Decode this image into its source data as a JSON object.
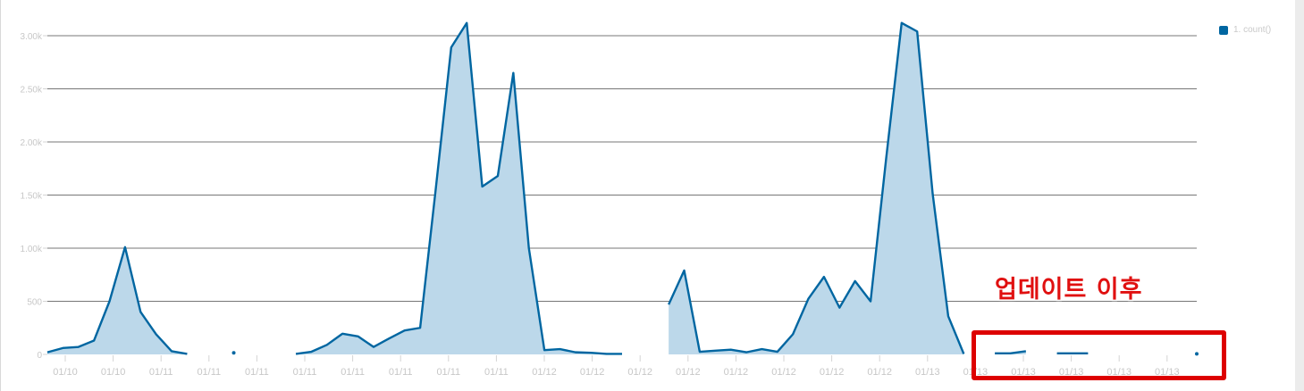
{
  "colors": {
    "series": "#0066a1",
    "fill": "#bcd8ea",
    "grid": "#4a4a4a",
    "ticks": "#c7c7c7",
    "annotation": "#e01010"
  },
  "legend": {
    "label": "1. count()",
    "placement": "top-right"
  },
  "annotation": {
    "text": "업데이트 이후"
  },
  "chart_data": {
    "type": "area",
    "title": "",
    "xlabel": "",
    "ylabel": "",
    "ylim": [
      0,
      3000
    ],
    "yticks": [
      0,
      500,
      1000,
      1500,
      2000,
      2500,
      3000
    ],
    "ytick_labels": [
      "0",
      "500",
      "1.00k",
      "1.50k",
      "2.00k",
      "2.50k",
      "3.00k"
    ],
    "xtick_labels": [
      "01/10",
      "01/10",
      "01/11",
      "01/11",
      "01/11",
      "01/11",
      "01/11",
      "01/11",
      "01/11",
      "01/11",
      "01/12",
      "01/12",
      "01/12",
      "01/12",
      "01/12",
      "01/12",
      "01/12",
      "01/12",
      "01/13",
      "01/13",
      "01/13",
      "01/13",
      "01/13",
      "01/13"
    ],
    "grid": true,
    "series": [
      {
        "name": "1. count()",
        "values": [
          20,
          60,
          70,
          130,
          500,
          1010,
          400,
          190,
          30,
          5,
          null,
          null,
          15,
          null,
          null,
          null,
          5,
          25,
          90,
          195,
          170,
          70,
          150,
          225,
          250,
          1550,
          2890,
          3120,
          1580,
          1680,
          2650,
          1000,
          40,
          50,
          20,
          15,
          5,
          5,
          null,
          null,
          470,
          790,
          25,
          35,
          45,
          20,
          50,
          25,
          190,
          525,
          730,
          440,
          690,
          500,
          1840,
          3120,
          3040,
          1510,
          360,
          5,
          null,
          10,
          10,
          30,
          null,
          10,
          10,
          10,
          null,
          null,
          null,
          null,
          null,
          null,
          5
        ]
      }
    ]
  }
}
